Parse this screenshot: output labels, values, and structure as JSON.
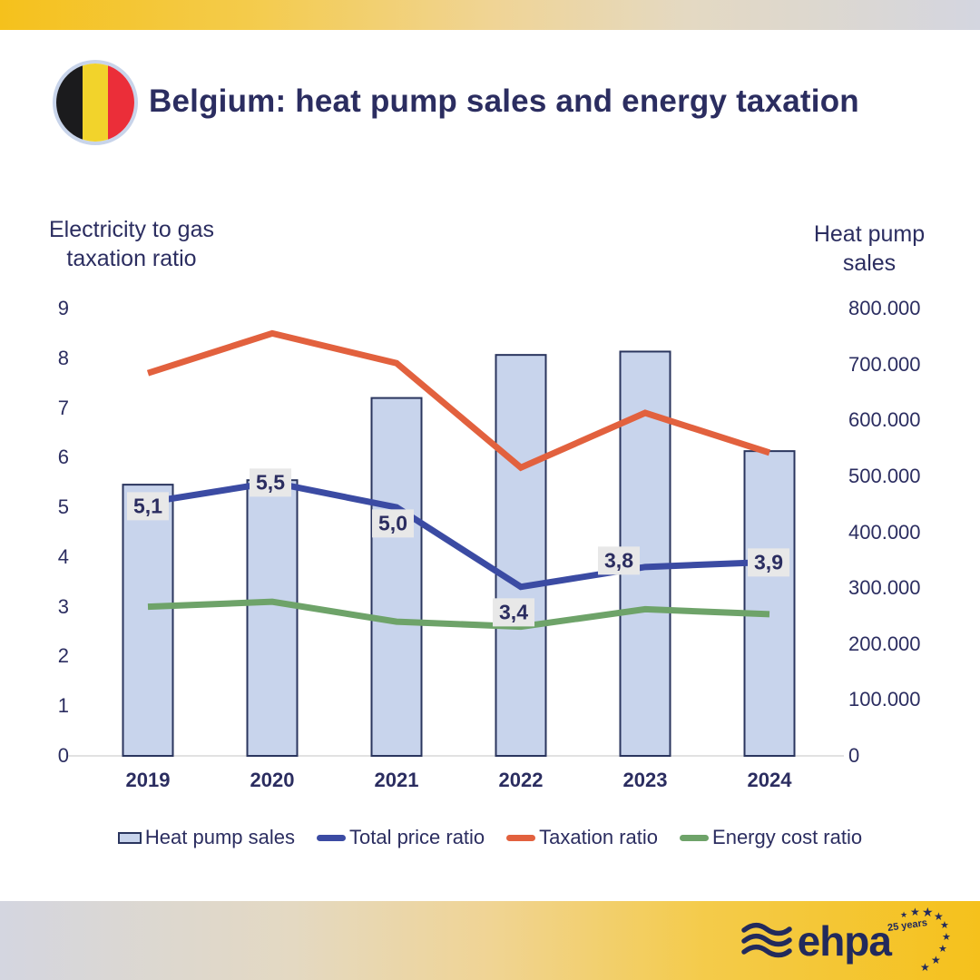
{
  "header": {
    "title": "Belgium: heat pump sales and energy taxation",
    "flag": "belgium-flag",
    "flag_colors": {
      "black": "#1B1B1D",
      "yellow": "#F2D32B",
      "red": "#EB2E39",
      "ring": "#C8D4EA"
    }
  },
  "chart_data": {
    "type": "bar+line",
    "categories": [
      "2019",
      "2020",
      "2021",
      "2022",
      "2023",
      "2024"
    ],
    "bar_series": {
      "name": "Heat pump sales",
      "axis": "right",
      "color": "#C8D4EC",
      "border_color": "#2A355E",
      "values": [
        485000,
        493000,
        640000,
        717000,
        723000,
        545000
      ]
    },
    "line_series": [
      {
        "name": "Total price ratio",
        "color": "#3B4BA3",
        "values": [
          5.1,
          5.5,
          5.0,
          3.4,
          3.8,
          3.9
        ],
        "point_labels": [
          "5,1",
          "5,5",
          "5,0",
          "3,4",
          "3,8",
          "3,9"
        ]
      },
      {
        "name": "Taxation ratio",
        "color": "#E2613E",
        "values": [
          7.7,
          8.5,
          7.9,
          5.8,
          6.9,
          6.1
        ]
      },
      {
        "name": "Energy cost ratio",
        "color": "#6EA369",
        "values": [
          3.0,
          3.1,
          2.7,
          2.6,
          2.95,
          2.85
        ]
      }
    ],
    "left_axis": {
      "title": "Electricity to gas taxation ratio",
      "min": 0,
      "max": 9,
      "ticks": [
        "9",
        "8",
        "7",
        "6",
        "5",
        "4",
        "3",
        "2",
        "1",
        "0"
      ]
    },
    "right_axis": {
      "title": "Heat pump sales",
      "min": 0,
      "max": 800000,
      "ticks": [
        "800.000",
        "700.000",
        "600.000",
        "500.000",
        "400.000",
        "300.000",
        "200.000",
        "100.000",
        "0"
      ]
    },
    "grid": "off",
    "legend_position": "bottom"
  },
  "footer": {
    "logo_text": "ehpa",
    "logo_badge": "25 years"
  }
}
